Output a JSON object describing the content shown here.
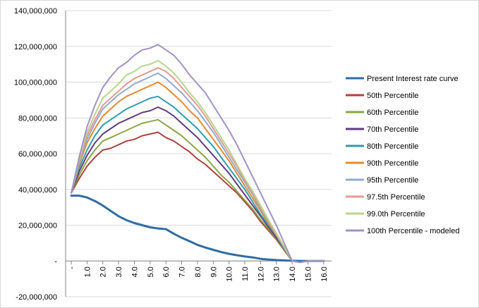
{
  "chart_data": {
    "type": "line",
    "title": "",
    "xlabel": "",
    "ylabel": "",
    "ylim": [
      -20000000,
      140000000
    ],
    "yticks": [
      -20000000,
      0,
      20000000,
      40000000,
      60000000,
      80000000,
      100000000,
      120000000,
      140000000
    ],
    "ytick_labels": [
      "-20,000,000",
      "-",
      "20,000,000",
      "40,000,000",
      "60,000,000",
      "80,000,000",
      "100,000,000",
      "120,000,000",
      "140,000,000"
    ],
    "xlim": [
      0,
      16.5
    ],
    "xticks": [
      0,
      1,
      2,
      3,
      4,
      5,
      6,
      7,
      8,
      9,
      10,
      11,
      12,
      13,
      14,
      15,
      16
    ],
    "xtick_labels": [
      "-",
      "1.0",
      "2.0",
      "3.0",
      "4.0",
      "5.0",
      "6.0",
      "7.0",
      "8.0",
      "9.0",
      "10.0",
      "11.0",
      "12.0",
      "13.0",
      "14.0",
      "15.0",
      "16.0"
    ],
    "grid": "horizontal",
    "legend_position": "right",
    "x": [
      0,
      0.5,
      1,
      1.5,
      2,
      2.5,
      3,
      3.5,
      4,
      4.5,
      5,
      5.5,
      6,
      6.5,
      7,
      7.5,
      8,
      8.5,
      9,
      9.5,
      10,
      10.5,
      11,
      11.5,
      12,
      12.5,
      13,
      13.5,
      14,
      14.5,
      15,
      15.5,
      16
    ],
    "series": [
      {
        "name": "Present Interest rate curve",
        "color": "#2E6DA4",
        "width": 3,
        "values": [
          36500000,
          36500000,
          35500000,
          33500000,
          31000000,
          28000000,
          25000000,
          22800000,
          21200000,
          20000000,
          18800000,
          18200000,
          17800000,
          15200000,
          13000000,
          11000000,
          9000000,
          7500000,
          6200000,
          5000000,
          4000000,
          3200000,
          2500000,
          2000000,
          1200000,
          800000,
          500000,
          300000,
          100000,
          0,
          0,
          0,
          0
        ]
      },
      {
        "name": "50th Percentile",
        "color": "#B0413E",
        "width": 2,
        "values": [
          38000000,
          46000000,
          53000000,
          58000000,
          62000000,
          63000000,
          65000000,
          67000000,
          68000000,
          70000000,
          71000000,
          72000000,
          69000000,
          67000000,
          64000000,
          61000000,
          57000000,
          54000000,
          50000000,
          46000000,
          42000000,
          38000000,
          33000000,
          28000000,
          22000000,
          17000000,
          12000000,
          6000000,
          0,
          -800000,
          0,
          0,
          0
        ]
      },
      {
        "name": "60th Percentile",
        "color": "#8BA744",
        "width": 2,
        "values": [
          38000000,
          48000000,
          56000000,
          62000000,
          67000000,
          69000000,
          71000000,
          73000000,
          75000000,
          77000000,
          78000000,
          79000000,
          76000000,
          73000000,
          70000000,
          66000000,
          62000000,
          58000000,
          53000000,
          48000000,
          44000000,
          39000000,
          34000000,
          29000000,
          23000000,
          18000000,
          12500000,
          6500000,
          0,
          -800000,
          0,
          0,
          0
        ]
      },
      {
        "name": "70th Percentile",
        "color": "#5E3C7E",
        "width": 2,
        "values": [
          38000000,
          50000000,
          59000000,
          66000000,
          71000000,
          74000000,
          77000000,
          79000000,
          81000000,
          83000000,
          84000000,
          86000000,
          84000000,
          81000000,
          77000000,
          73000000,
          69000000,
          64000000,
          59000000,
          54000000,
          49000000,
          43000000,
          37000000,
          31000000,
          25000000,
          19000000,
          13000000,
          7000000,
          0,
          -800000,
          0,
          0,
          0
        ]
      },
      {
        "name": "80th Percentile",
        "color": "#2E9CB0",
        "width": 2,
        "values": [
          38000000,
          52000000,
          62000000,
          70000000,
          76000000,
          79000000,
          82000000,
          85000000,
          87000000,
          89000000,
          91000000,
          92000000,
          89000000,
          86000000,
          82000000,
          78000000,
          74000000,
          69000000,
          64000000,
          58000000,
          52000000,
          46000000,
          40000000,
          33000000,
          26000000,
          20000000,
          14000000,
          7000000,
          0,
          -800000,
          0,
          0,
          0
        ]
      },
      {
        "name": "90th Percentile",
        "color": "#E68A2E",
        "width": 2,
        "values": [
          38000000,
          54000000,
          66000000,
          74000000,
          81000000,
          85000000,
          89000000,
          92000000,
          94000000,
          96000000,
          98000000,
          100000000,
          97000000,
          93000000,
          89000000,
          84000000,
          80000000,
          74000000,
          68000000,
          62000000,
          56000000,
          49000000,
          42000000,
          35000000,
          28000000,
          21000000,
          14500000,
          7500000,
          0,
          -800000,
          0,
          0,
          0
        ]
      },
      {
        "name": "95th Percentile",
        "color": "#8FAAD1",
        "width": 2,
        "values": [
          38000000,
          55000000,
          68000000,
          77000000,
          85000000,
          89000000,
          93000000,
          96000000,
          99000000,
          101000000,
          103000000,
          105000000,
          102000000,
          98000000,
          94000000,
          89000000,
          84000000,
          78000000,
          72000000,
          65000000,
          58000000,
          51000000,
          44000000,
          37000000,
          29000000,
          22000000,
          15000000,
          7500000,
          0,
          -800000,
          0,
          0,
          0
        ]
      },
      {
        "name": "97.5th Percentile",
        "color": "#E39B92",
        "width": 2,
        "values": [
          38000000,
          56000000,
          70000000,
          79000000,
          87000000,
          91000000,
          95000000,
          99000000,
          102000000,
          104000000,
          106000000,
          108000000,
          106000000,
          102000000,
          97000000,
          92000000,
          87000000,
          81000000,
          74000000,
          67000000,
          60000000,
          53000000,
          45000000,
          38000000,
          30000000,
          22500000,
          15000000,
          8000000,
          0,
          -800000,
          0,
          0,
          0
        ]
      },
      {
        "name": "99.0th Percentile",
        "color": "#B9D48E",
        "width": 2,
        "values": [
          38000000,
          57000000,
          72000000,
          82000000,
          91000000,
          95000000,
          99000000,
          104000000,
          106000000,
          109000000,
          110000000,
          112000000,
          109000000,
          105000000,
          100000000,
          94000000,
          89000000,
          83000000,
          76000000,
          69000000,
          62000000,
          54000000,
          46000000,
          39000000,
          31000000,
          23000000,
          15500000,
          8000000,
          0,
          -800000,
          0,
          0,
          0
        ]
      },
      {
        "name": "100th Percentile - modeled",
        "color": "#A291C4",
        "width": 2,
        "values": [
          38000000,
          58000000,
          75000000,
          87000000,
          97000000,
          103000000,
          108000000,
          111000000,
          115000000,
          118000000,
          119000000,
          121000000,
          118000000,
          115000000,
          110000000,
          104000000,
          99000000,
          94000000,
          87000000,
          80000000,
          73000000,
          65000000,
          56000000,
          47000000,
          38000000,
          29000000,
          20000000,
          10000000,
          0,
          -800000,
          0,
          0,
          0
        ]
      }
    ]
  }
}
